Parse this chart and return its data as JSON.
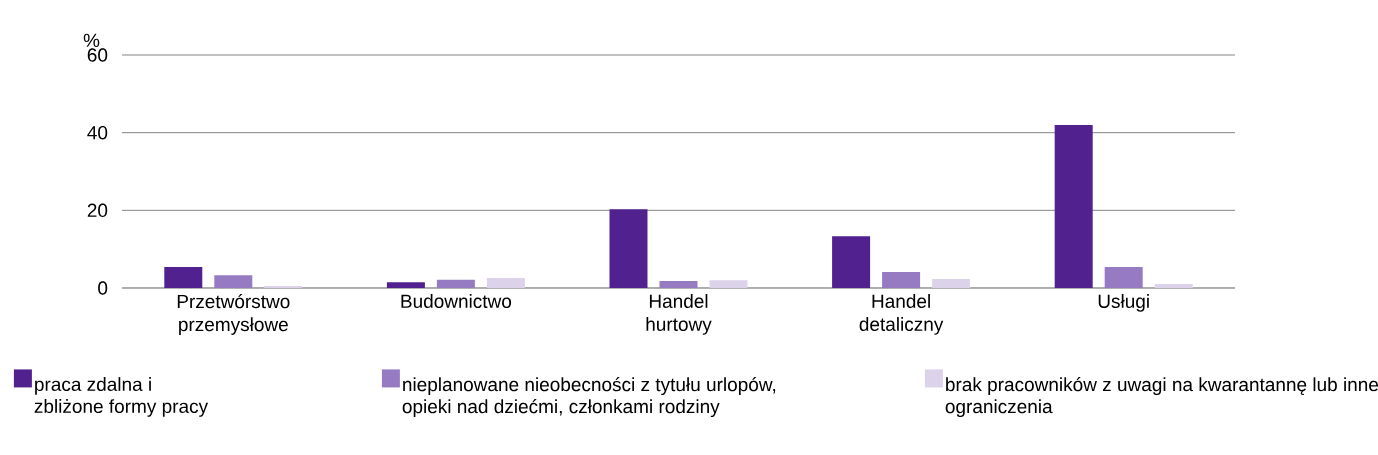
{
  "chart_data": {
    "type": "bar",
    "ylabel": "%",
    "categories": [
      "Przetwórstwo przemysłowe",
      "Budownictwo",
      "Handel hurtowy",
      "Handel detaliczny",
      "Usługi"
    ],
    "series": [
      {
        "name": "praca zdalna i zbliżone formy pracy",
        "color": "#51218f",
        "values": [
          5.4,
          1.5,
          20.3,
          13.3,
          42.0
        ]
      },
      {
        "name": "nieplanowane nieobecności z tytułu urlopów, opieki nad dziećmi, członkami rodziny",
        "color": "#977bc2",
        "values": [
          3.3,
          2.1,
          1.8,
          4.1,
          5.4
        ]
      },
      {
        "name": "brak pracowników z uwagi na kwarantannę lub inne ograniczenia",
        "color": "#dcd3ea",
        "values": [
          0.5,
          2.6,
          2.0,
          2.3,
          1.0
        ]
      }
    ],
    "ylim": [
      0,
      60
    ],
    "yticks": [
      0,
      20,
      40,
      60
    ],
    "grid": "y",
    "legend": "bottom"
  }
}
